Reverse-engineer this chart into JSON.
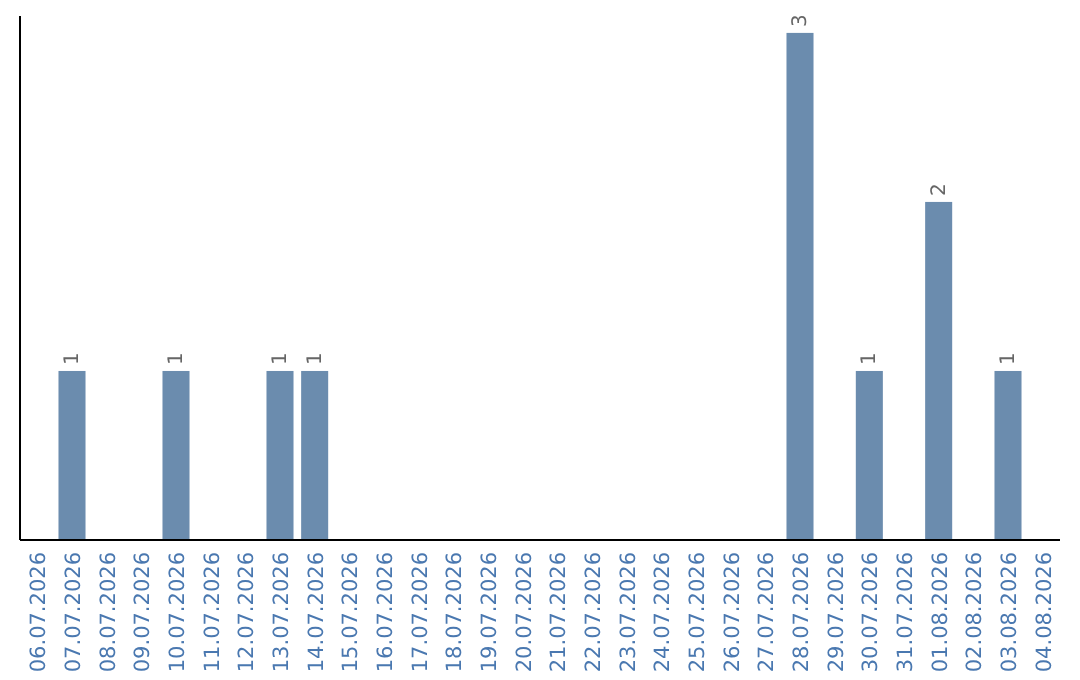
{
  "chart_data": {
    "type": "bar",
    "categories": [
      "06.07.2026",
      "07.07.2026",
      "08.07.2026",
      "09.07.2026",
      "10.07.2026",
      "11.07.2026",
      "12.07.2026",
      "13.07.2026",
      "14.07.2026",
      "15.07.2026",
      "16.07.2026",
      "17.07.2026",
      "18.07.2026",
      "19.07.2026",
      "20.07.2026",
      "21.07.2026",
      "22.07.2026",
      "23.07.2026",
      "24.07.2026",
      "25.07.2026",
      "26.07.2026",
      "27.07.2026",
      "28.07.2026",
      "29.07.2026",
      "30.07.2026",
      "31.07.2026",
      "01.08.2026",
      "02.08.2026",
      "03.08.2026",
      "04.08.2026"
    ],
    "values": [
      0,
      1,
      0,
      0,
      1,
      0,
      0,
      1,
      1,
      0,
      0,
      0,
      0,
      0,
      0,
      0,
      0,
      0,
      0,
      0,
      0,
      0,
      3,
      0,
      1,
      0,
      2,
      0,
      1,
      0
    ],
    "value_labels": [
      null,
      "1",
      null,
      null,
      "1",
      null,
      null,
      "1",
      "1",
      null,
      null,
      null,
      null,
      null,
      null,
      null,
      null,
      null,
      null,
      null,
      null,
      null,
      "3",
      null,
      "1",
      null,
      "2",
      null,
      "1",
      null
    ],
    "color": "#6b8cae",
    "ylim": [
      0,
      3.1
    ],
    "tick_labels": "x"
  }
}
